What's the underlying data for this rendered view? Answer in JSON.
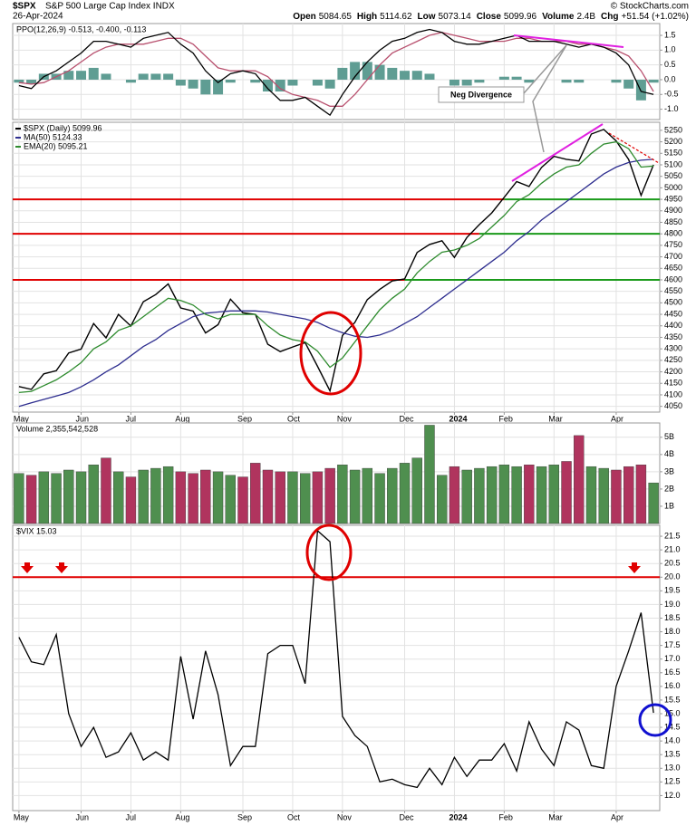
{
  "header": {
    "symbol": "$SPX",
    "name": "S&P 500 Large Cap Index INDX",
    "credit": "© StockCharts.com",
    "date": "26-Apr-2024",
    "quote": [
      {
        "label": "Open",
        "value": "5084.65"
      },
      {
        "label": "High",
        "value": "5114.62"
      },
      {
        "label": "Low",
        "value": "5073.14"
      },
      {
        "label": "Close",
        "value": "5099.96"
      },
      {
        "label": "Volume",
        "value": "2.4B"
      },
      {
        "label": "Chg",
        "value": "+51.54 (+1.02%)"
      }
    ]
  },
  "chart_data": [
    {
      "type": "line",
      "title": "PPO(12,26,9) -0.513, -0.400, -0.113",
      "annotation": "Neg Divergence",
      "ylim": [
        -1.35,
        1.9
      ],
      "yticks": [
        1.5,
        {
          "value": 1.0,
          "label": "1.0"
        },
        0.5,
        {
          "value": 0.0,
          "label": "0.0"
        },
        -0.5,
        {
          "value": -1.0,
          "label": "-1.0"
        }
      ],
      "grid": true,
      "series": [
        {
          "style": "bar",
          "color": "#5f9d93",
          "values": [
            -0.1,
            -0.15,
            0.2,
            0.2,
            0.3,
            0.3,
            0.4,
            0.2,
            0,
            -0.1,
            0.2,
            0.2,
            0.2,
            -0.2,
            -0.3,
            -0.5,
            -0.5,
            -0.1,
            0,
            -0.1,
            -0.4,
            -0.4,
            -0.2,
            0,
            -0.2,
            -0.3,
            0.4,
            0.6,
            0.6,
            0.5,
            0.4,
            0.3,
            0.3,
            0.2,
            0,
            -0.2,
            -0.2,
            -0.1,
            0,
            0.1,
            0.1,
            -0.1,
            0,
            0,
            -0.1,
            -0.1,
            0,
            0,
            -0.1,
            -0.3,
            -0.7,
            -0.1
          ]
        },
        {
          "style": "line",
          "color": "#b8506e",
          "values": [
            -0.1,
            -0.15,
            -0.1,
            0.1,
            0.3,
            0.6,
            0.9,
            1.1,
            1.2,
            1.2,
            1.2,
            1.3,
            1.4,
            1.4,
            1.2,
            0.8,
            0.4,
            0.3,
            0.3,
            0.3,
            0.1,
            -0.3,
            -0.5,
            -0.6,
            -0.7,
            -0.9,
            -0.9,
            -0.5,
            0.0,
            0.5,
            0.9,
            1.1,
            1.3,
            1.5,
            1.6,
            1.5,
            1.4,
            1.3,
            1.3,
            1.3,
            1.4,
            1.4,
            1.3,
            1.3,
            1.3,
            1.2,
            1.2,
            1.1,
            1.0,
            0.8,
            0.3,
            -0.4
          ]
        },
        {
          "style": "line",
          "color": "#000000",
          "values": [
            -0.2,
            -0.3,
            0.1,
            0.3,
            0.6,
            0.9,
            1.3,
            1.3,
            1.2,
            1.1,
            1.4,
            1.5,
            1.6,
            1.2,
            0.9,
            0.3,
            -0.1,
            0.2,
            0.3,
            0.2,
            -0.3,
            -0.7,
            -0.7,
            -0.6,
            -0.9,
            -1.2,
            -0.5,
            0.1,
            0.6,
            1.0,
            1.3,
            1.4,
            1.6,
            1.7,
            1.6,
            1.3,
            1.2,
            1.2,
            1.3,
            1.4,
            1.5,
            1.3,
            1.3,
            1.3,
            1.2,
            1.1,
            1.2,
            1.1,
            0.9,
            0.5,
            -0.4,
            -0.5
          ]
        }
      ]
    },
    {
      "type": "line",
      "categories": [
        "May",
        null,
        null,
        null,
        null,
        "Jun",
        null,
        null,
        null,
        "Jul",
        null,
        null,
        null,
        "Aug",
        null,
        null,
        null,
        null,
        "Sep",
        null,
        null,
        null,
        "Oct",
        null,
        null,
        null,
        "Nov",
        null,
        null,
        null,
        null,
        "Dec",
        null,
        null,
        null,
        "2024",
        null,
        null,
        null,
        "Feb",
        null,
        null,
        null,
        "Mar",
        null,
        null,
        null,
        null,
        "Apr",
        null,
        null,
        null
      ],
      "ylim": [
        4025,
        5285
      ],
      "yticks": [
        4050,
        4100,
        4150,
        4200,
        4250,
        4300,
        4350,
        4400,
        4450,
        4500,
        4550,
        4600,
        4650,
        4700,
        4750,
        4800,
        4850,
        4900,
        4950,
        5000,
        5050,
        5100,
        5150,
        5200,
        5250
      ],
      "grid": true,
      "hlines": [
        {
          "value": 4950,
          "color": "#e00000",
          "above_color": "#1a9a1a"
        },
        {
          "value": 4800,
          "color": "#e00000",
          "above_color": "#1a9a1a"
        },
        {
          "value": 4600,
          "color": "#e00000",
          "above_color": "#1a9a1a"
        }
      ],
      "series": [
        {
          "name": "$SPX (Daily) 5099.96",
          "color": "#000000",
          "values": [
            4136,
            4124,
            4191,
            4205,
            4282,
            4299,
            4410,
            4348,
            4450,
            4399,
            4505,
            4536,
            4582,
            4478,
            4464,
            4369,
            4405,
            4516,
            4457,
            4450,
            4320,
            4288,
            4308,
            4327,
            4224,
            4117,
            4358,
            4415,
            4514,
            4559,
            4595,
            4604,
            4719,
            4754,
            4770,
            4697,
            4784,
            4840,
            4891,
            4959,
            5027,
            5006,
            5089,
            5137,
            5124,
            5117,
            5234,
            5254,
            5204,
            5123,
            4967,
            5100
          ]
        },
        {
          "name": "MA(50) 5124.33",
          "color": "#2e2e8f",
          "values": [
            4050,
            4065,
            4080,
            4095,
            4110,
            4135,
            4165,
            4200,
            4230,
            4270,
            4310,
            4340,
            4380,
            4410,
            4440,
            4455,
            4460,
            4465,
            4465,
            4465,
            4460,
            4450,
            4440,
            4430,
            4415,
            4390,
            4370,
            4355,
            4350,
            4360,
            4380,
            4410,
            4440,
            4480,
            4520,
            4560,
            4600,
            4640,
            4680,
            4720,
            4770,
            4810,
            4860,
            4900,
            4940,
            4980,
            5020,
            5060,
            5090,
            5110,
            5120,
            5124
          ]
        },
        {
          "name": "EMA(20) 5095.21",
          "color": "#2e8b2e",
          "values": [
            4110,
            4115,
            4140,
            4165,
            4200,
            4240,
            4300,
            4330,
            4380,
            4400,
            4440,
            4480,
            4520,
            4510,
            4490,
            4450,
            4430,
            4450,
            4450,
            4450,
            4400,
            4360,
            4340,
            4330,
            4290,
            4220,
            4260,
            4330,
            4400,
            4470,
            4520,
            4560,
            4630,
            4680,
            4720,
            4730,
            4750,
            4780,
            4830,
            4880,
            4940,
            4970,
            5020,
            5060,
            5090,
            5100,
            5150,
            5190,
            5200,
            5170,
            5090,
            5095
          ]
        }
      ]
    },
    {
      "type": "bar",
      "title": "Volume 2,355,542,528",
      "ylim": [
        0,
        5830000000
      ],
      "yticks": [
        {
          "value": 1000000000,
          "label": "1B"
        },
        {
          "value": 2000000000,
          "label": "2B"
        },
        {
          "value": 3000000000,
          "label": "3B"
        },
        {
          "value": 4000000000,
          "label": "4B"
        },
        {
          "value": 5000000000,
          "label": "5B"
        }
      ],
      "grid": true,
      "colors": {
        "up": "#4f8f4f",
        "down": "#b0345e"
      },
      "values": [
        2900000000,
        2800000000,
        3000000000,
        2900000000,
        3100000000,
        3000000000,
        3400000000,
        3800000000,
        3000000000,
        2700000000,
        3100000000,
        3200000000,
        3300000000,
        3000000000,
        2900000000,
        3100000000,
        3000000000,
        2800000000,
        2700000000,
        3500000000,
        3100000000,
        3000000000,
        3000000000,
        2900000000,
        3000000000,
        3200000000,
        3400000000,
        3100000000,
        3200000000,
        2900000000,
        3200000000,
        3500000000,
        3800000000,
        5700000000,
        2800000000,
        3300000000,
        3100000000,
        3200000000,
        3300000000,
        3400000000,
        3300000000,
        3400000000,
        3300000000,
        3400000000,
        3600000000,
        5100000000,
        3300000000,
        3200000000,
        3100000000,
        3300000000,
        3400000000,
        2355542528
      ]
    },
    {
      "type": "line",
      "title": "$VIX 15.03",
      "categories": [
        "May",
        null,
        null,
        null,
        null,
        "Jun",
        null,
        null,
        null,
        "Jul",
        null,
        null,
        null,
        "Aug",
        null,
        null,
        null,
        null,
        "Sep",
        null,
        null,
        null,
        "Oct",
        null,
        null,
        null,
        "Nov",
        null,
        null,
        null,
        null,
        "Dec",
        null,
        null,
        null,
        "2024",
        null,
        null,
        null,
        "Feb",
        null,
        null,
        null,
        "Mar",
        null,
        null,
        null,
        null,
        "Apr",
        null,
        null,
        null
      ],
      "ylim": [
        11.45,
        21.9
      ],
      "yticks": [
        {
          "value": 12.0,
          "label": "12.0"
        },
        12.5,
        {
          "value": 13.0,
          "label": "13.0"
        },
        13.5,
        {
          "value": 14.0,
          "label": "14.0"
        },
        14.5,
        {
          "value": 15.0,
          "label": "15.0"
        },
        15.5,
        {
          "value": 16.0,
          "label": "16.0"
        },
        16.5,
        {
          "value": 17.0,
          "label": "17.0"
        },
        17.5,
        {
          "value": 18.0,
          "label": "18.0"
        },
        18.5,
        {
          "value": 19.0,
          "label": "19.0"
        },
        19.5,
        {
          "value": 20.0,
          "label": "20.0"
        },
        20.5,
        {
          "value": 21.0,
          "label": "21.0"
        },
        21.5
      ],
      "grid": true,
      "hlines": [
        {
          "value": 20,
          "color": "#e00000"
        }
      ],
      "series": [
        {
          "color": "#000000",
          "values": [
            17.8,
            16.9,
            16.8,
            17.9,
            15.0,
            13.8,
            14.5,
            13.4,
            13.6,
            14.3,
            13.3,
            13.6,
            13.3,
            17.1,
            14.8,
            17.3,
            15.7,
            13.1,
            13.8,
            13.8,
            17.2,
            17.5,
            17.5,
            16.1,
            21.7,
            21.3,
            14.9,
            14.2,
            13.8,
            12.5,
            12.6,
            12.4,
            12.3,
            13.0,
            12.4,
            13.4,
            12.7,
            13.3,
            13.3,
            13.9,
            12.9,
            14.7,
            13.7,
            13.1,
            14.7,
            14.4,
            13.1,
            13.0,
            16.0,
            17.3,
            18.7,
            15.03
          ]
        }
      ]
    }
  ]
}
